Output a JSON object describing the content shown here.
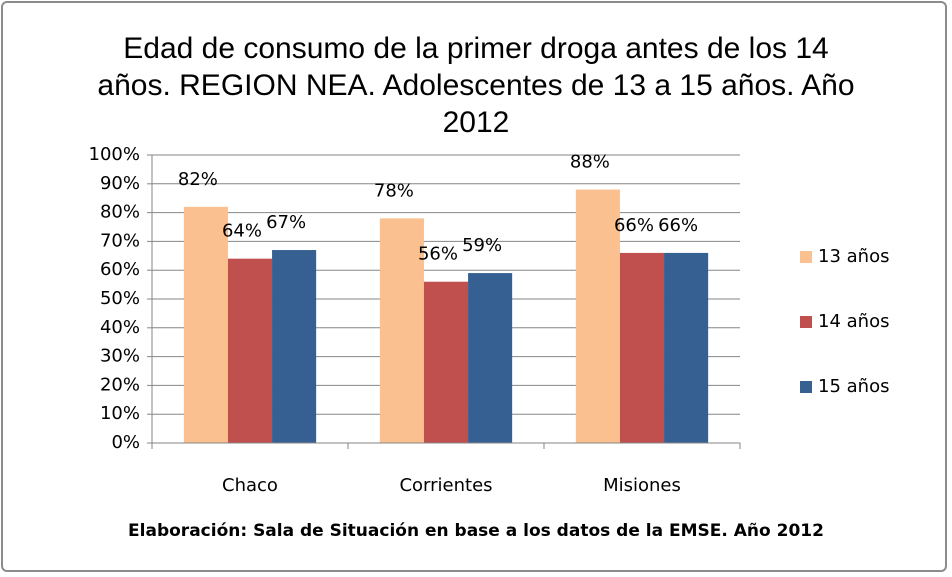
{
  "chart_data": {
    "type": "bar",
    "title": "Edad de consumo de la primer droga antes de los 14 años. REGION NEA. Adolescentes de 13 a 15 años. Año 2012",
    "caption": "Elaboración: Sala de Situación en base a los datos de la EMSE. Año 2012",
    "categories": [
      "Chaco",
      "Corrientes",
      "Misiones"
    ],
    "series": [
      {
        "name": "13 años",
        "color": "#fac090",
        "values": [
          82,
          78,
          88
        ],
        "value_labels": [
          "82%",
          "78%",
          "88%"
        ]
      },
      {
        "name": "14 años",
        "color": "#c0504d",
        "values": [
          64,
          56,
          66
        ],
        "value_labels": [
          "64%",
          "56%",
          "66%"
        ]
      },
      {
        "name": "15 años",
        "color": "#376092",
        "values": [
          67,
          59,
          66
        ],
        "value_labels": [
          "67%",
          "59%",
          "66%"
        ]
      }
    ],
    "ylim": [
      0,
      100
    ],
    "yticks": [
      {
        "value": 0,
        "label": "0%"
      },
      {
        "value": 10,
        "label": "10%"
      },
      {
        "value": 20,
        "label": "20%"
      },
      {
        "value": 30,
        "label": "30%"
      },
      {
        "value": 40,
        "label": "40%"
      },
      {
        "value": 50,
        "label": "50%"
      },
      {
        "value": 60,
        "label": "60%"
      },
      {
        "value": 70,
        "label": "70%"
      },
      {
        "value": 80,
        "label": "80%"
      },
      {
        "value": 90,
        "label": "90%"
      },
      {
        "value": 100,
        "label": "100%"
      }
    ],
    "grid": true,
    "legend": "right"
  }
}
